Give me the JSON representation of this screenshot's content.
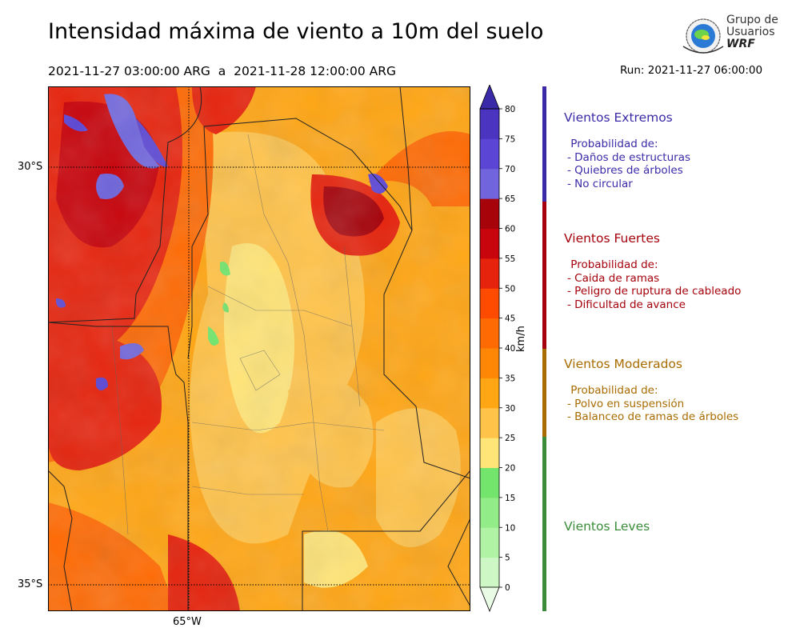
{
  "header": {
    "title": "Intensidad máxima de viento a 10m del suelo",
    "period": "2021-11-27 03:00:00 ARG  a  2021-11-28 12:00:00 ARG",
    "run": "Run: 2021-11-27 06:00:00"
  },
  "logo": {
    "line1": "Grupo de",
    "line2": "Usuarios",
    "line3": "WRF"
  },
  "map": {
    "lat_labels": [
      "30°S",
      "35°S"
    ],
    "lon_labels": [
      "65°W"
    ],
    "lat_values": [
      -30,
      -35
    ],
    "lon_values": [
      -65
    ],
    "extent": {
      "lon_min": -66.65,
      "lon_max": -61.6,
      "lat_min": -35.3,
      "lat_max": -29.0
    }
  },
  "colorbar": {
    "units": "km/h",
    "ticks": [
      "0",
      "5",
      "10",
      "15",
      "20",
      "25",
      "30",
      "35",
      "40",
      "45",
      "50",
      "55",
      "60",
      "65",
      "70",
      "75",
      "80"
    ],
    "colors": [
      "#e9fbe5",
      "#cdf7c4",
      "#b1f3a4",
      "#92ec87",
      "#73e56d",
      "#ffe477",
      "#ffc34a",
      "#ffa615",
      "#ff8705",
      "#ff6a03",
      "#ff4b00",
      "#e6230c",
      "#c8040c",
      "#a6030b",
      "#7065dd",
      "#5b45d5",
      "#4a34c0"
    ],
    "over_color": "#3a2aa8"
  },
  "categories": [
    {
      "title": "Vientos Extremos",
      "color": "#3a2aa8",
      "lines": [
        " Probabilidad de:",
        "- Daños de estructuras",
        "- Quiebres de árboles",
        "- No circular"
      ]
    },
    {
      "title": "Vientos Fuertes",
      "color": "#a5000b",
      "lines": [
        " Probabilidad de:",
        "- Caida de ramas",
        "- Peligro de ruptura de cableado",
        "- Dificultad de avance"
      ]
    },
    {
      "title": "Vientos Moderados",
      "color": "#a86b00",
      "lines": [
        " Probabilidad de:",
        "- Polvo en suspensión",
        "- Balanceo de ramas de árboles"
      ]
    },
    {
      "title": "Vientos Leves",
      "color": "#3a8c3a",
      "lines": []
    }
  ]
}
